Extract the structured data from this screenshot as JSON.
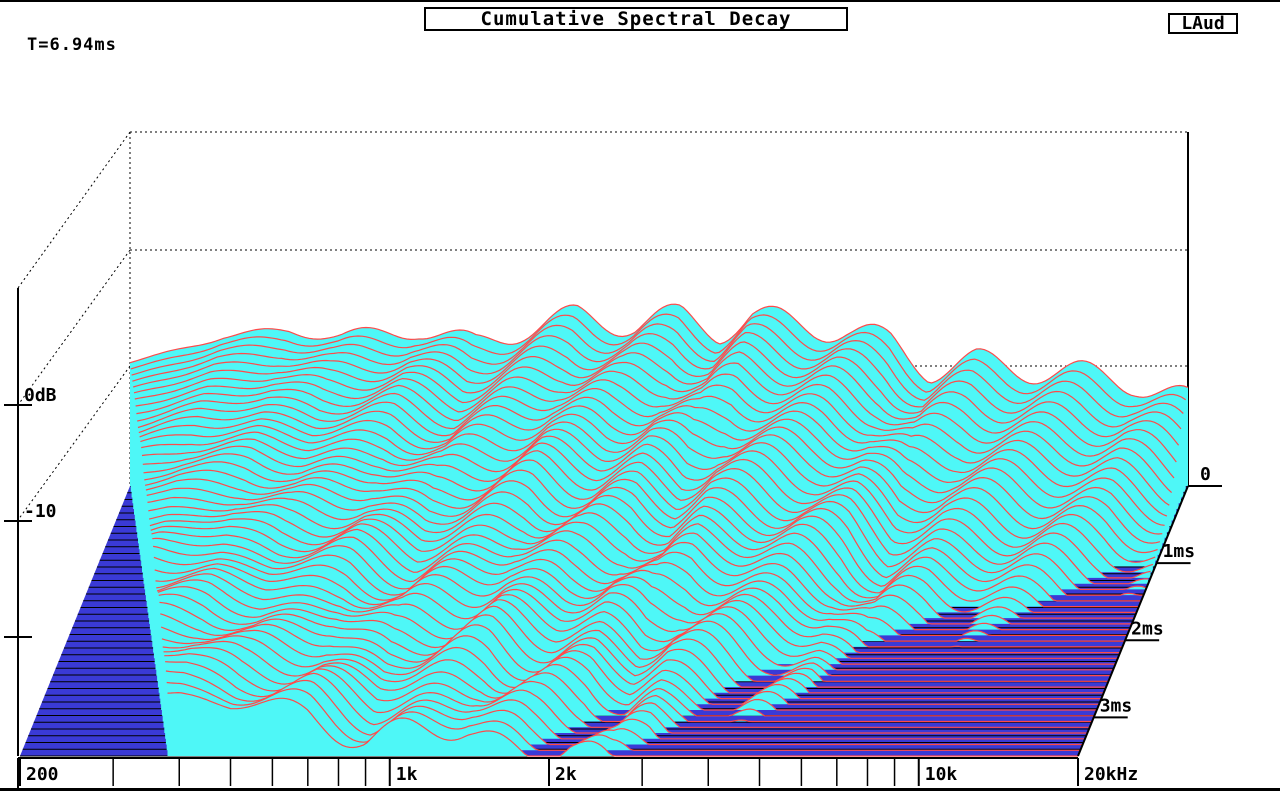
{
  "header": {
    "title": "Cumulative Spectral Decay",
    "brand": "LAud",
    "time_readout": "T=6.94ms"
  },
  "colors": {
    "fill": "#4ef7f7",
    "line": "#ff4a4a",
    "floor": "#3a3ad6",
    "axis": "#000000"
  },
  "chart_data": {
    "type": "area",
    "title": "Cumulative Spectral Decay",
    "x_axis": {
      "scale": "log",
      "range_hz": [
        200,
        20000
      ],
      "tick_labels": [
        "200",
        "1k",
        "2k",
        "10k",
        "20kHz"
      ],
      "minor_ticks_hz": [
        300,
        400,
        500,
        600,
        700,
        800,
        900,
        3000,
        4000,
        5000,
        6000,
        7000,
        8000,
        9000
      ]
    },
    "y_axis": {
      "unit": "dB",
      "tick_labels": [
        "0dB",
        "-10"
      ],
      "range_db": [
        -20,
        5
      ]
    },
    "z_axis": {
      "unit": "ms",
      "tick_labels": [
        "0",
        "1ms",
        "2ms",
        "3ms"
      ],
      "range_ms": [
        0,
        3.5
      ]
    },
    "slice_count": 48,
    "initial_response_db": [
      {
        "hz": 200,
        "db": -1
      },
      {
        "hz": 300,
        "db": 3
      },
      {
        "hz": 400,
        "db": 4
      },
      {
        "hz": 500,
        "db": 3
      },
      {
        "hz": 700,
        "db": 4
      },
      {
        "hz": 900,
        "db": 2
      },
      {
        "hz": 1100,
        "db": 4
      },
      {
        "hz": 1400,
        "db": 6
      },
      {
        "hz": 1800,
        "db": 5
      },
      {
        "hz": 2200,
        "db": 6
      },
      {
        "hz": 2600,
        "db": 4
      },
      {
        "hz": 3000,
        "db": 6
      },
      {
        "hz": 3600,
        "db": 5
      },
      {
        "hz": 4500,
        "db": 4
      },
      {
        "hz": 5500,
        "db": 2
      },
      {
        "hz": 6500,
        "db": -2
      },
      {
        "hz": 8000,
        "db": -1
      },
      {
        "hz": 10000,
        "db": -2
      },
      {
        "hz": 13000,
        "db": -3
      },
      {
        "hz": 16000,
        "db": -4
      },
      {
        "hz": 20000,
        "db": -7
      }
    ]
  }
}
